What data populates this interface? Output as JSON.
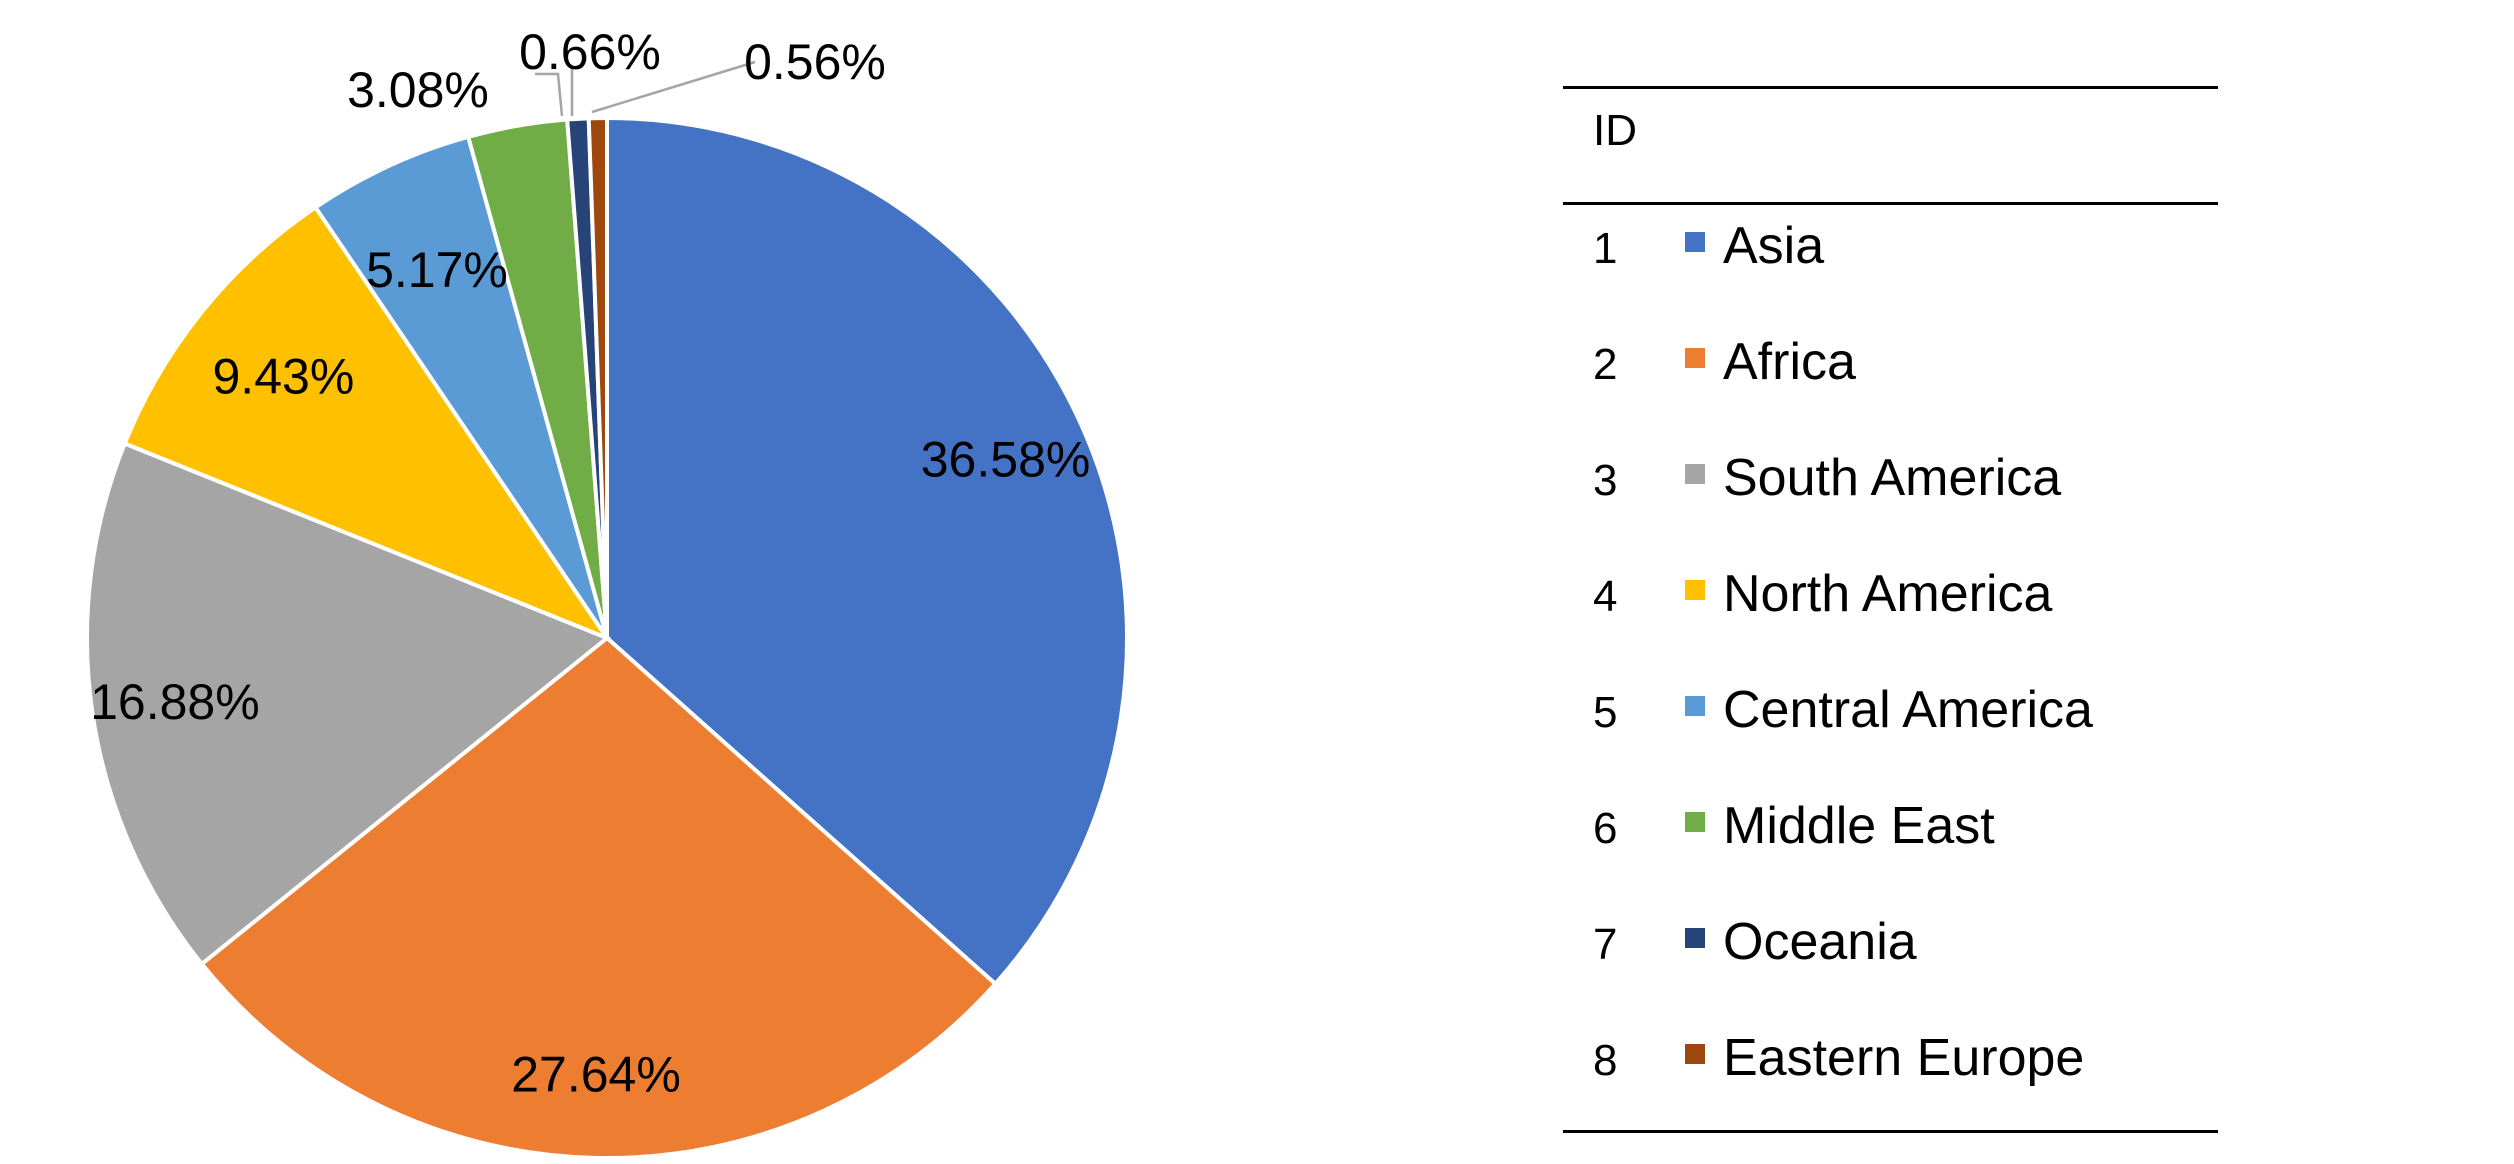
{
  "chart_data": {
    "type": "pie",
    "legend_position": "right",
    "legend_header": "ID",
    "slices": [
      {
        "id": "1",
        "label": "Asia",
        "value": 36.58,
        "display": "36.58%",
        "color": "#4472C4"
      },
      {
        "id": "2",
        "label": "Africa",
        "value": 27.64,
        "display": "27.64%",
        "color": "#ED7D31"
      },
      {
        "id": "3",
        "label": "South America",
        "value": 16.88,
        "display": "16.88%",
        "color": "#A5A5A5"
      },
      {
        "id": "4",
        "label": "North America",
        "value": 9.43,
        "display": "9.43%",
        "color": "#FFC000"
      },
      {
        "id": "5",
        "label": "Central America",
        "value": 5.17,
        "display": "5.17%",
        "color": "#5B9BD5"
      },
      {
        "id": "6",
        "label": "Middle East",
        "value": 3.08,
        "display": "3.08%",
        "color": "#70AD47"
      },
      {
        "id": "7",
        "label": "Oceania",
        "value": 0.66,
        "display": "0.66%",
        "color": "#264478"
      },
      {
        "id": "8",
        "label": "Eastern Europe",
        "value": 0.56,
        "display": "0.56%",
        "color": "#9E480E"
      }
    ]
  }
}
